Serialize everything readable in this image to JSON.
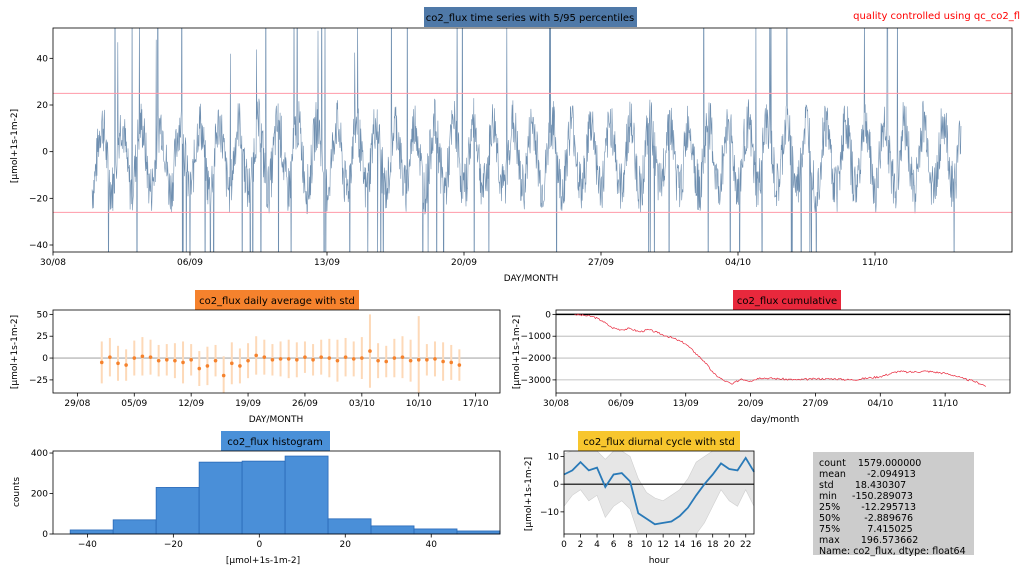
{
  "note": "quality controlled using qc_co2_fl",
  "colors": {
    "ts_title_bg": "#4f79a8",
    "ts_line": "#6f8fb0",
    "pct_line": "#ff9aa8",
    "daily_title_bg": "#f5822d",
    "daily_point": "#f5822d",
    "daily_bar": "#fdd9b8",
    "cum_title_bg": "#e8283c",
    "cum_line": "#e8283c",
    "hist_title_bg": "#4a90d8",
    "hist_fill": "#4a8fd8",
    "hist_edge": "#2a6ab8",
    "diurnal_title_bg": "#f7c62e",
    "diurnal_line": "#2a7ab8",
    "diurnal_band": "#e6e6e6",
    "stats_bg": "#cccccc"
  },
  "stats_lines": [
    "count    1579.000000",
    "mean       -2.094913",
    "std       18.430307",
    "min     -150.289073",
    "25%       -12.295713",
    "50%        -2.889676",
    "75%         7.415025",
    "max       196.573662",
    "Name: co2_flux, dtype: float64"
  ],
  "chart_data": [
    {
      "id": "timeseries",
      "type": "line",
      "title": "co2_flux time series with 5/95 percentiles",
      "xlabel": "DAY/MONTH",
      "ylabel": "[μmol+1s-1m-2]",
      "x_range_days": [
        0,
        49
      ],
      "x_ticks": [
        {
          "day": 0,
          "label": "30/08"
        },
        {
          "day": 7,
          "label": "06/09"
        },
        {
          "day": 14,
          "label": "13/09"
        },
        {
          "day": 21,
          "label": "20/09"
        },
        {
          "day": 28,
          "label": "27/09"
        },
        {
          "day": 35,
          "label": "04/10"
        },
        {
          "day": 42,
          "label": "11/10"
        }
      ],
      "ylim": [
        -43,
        53
      ],
      "y_ticks": [
        -40,
        -20,
        0,
        20,
        40
      ],
      "percentiles": {
        "p5": -26,
        "p95": 25
      },
      "series_start_day": 2.0,
      "series_end_day": 46.4,
      "series_step_day": 0.0208333,
      "series_values": []
    },
    {
      "id": "daily",
      "type": "errorbar",
      "title": "co2_flux daily average with std",
      "xlabel": "DAY/MONTH",
      "ylabel": "[μmol+1s-1m-2]",
      "x_range_days": [
        -3,
        52
      ],
      "x_ticks": [
        {
          "day": 0,
          "label": "29/08"
        },
        {
          "day": 7,
          "label": "05/09"
        },
        {
          "day": 14,
          "label": "12/09"
        },
        {
          "day": 21,
          "label": "19/09"
        },
        {
          "day": 28,
          "label": "26/09"
        },
        {
          "day": 35,
          "label": "03/10"
        },
        {
          "day": 42,
          "label": "10/10"
        },
        {
          "day": 49,
          "label": "17/10"
        }
      ],
      "ylim": [
        -40,
        55
      ],
      "y_ticks": [
        -25,
        0,
        25,
        50
      ],
      "days": [
        3,
        4,
        5,
        6,
        7,
        8,
        9,
        10,
        11,
        12,
        13,
        14,
        15,
        16,
        17,
        18,
        19,
        20,
        21,
        22,
        23,
        24,
        25,
        26,
        27,
        28,
        29,
        30,
        31,
        32,
        33,
        34,
        35,
        36,
        37,
        38,
        39,
        40,
        41,
        42,
        43,
        44,
        45,
        46,
        47
      ],
      "means": [
        -5,
        1,
        -6,
        -8,
        0,
        2,
        1,
        -3,
        -2,
        -3,
        -5,
        -2,
        -12,
        -9,
        -3,
        -20,
        -6,
        -9,
        -3,
        3,
        1,
        -2,
        -1,
        -1,
        -2,
        1,
        -2,
        1,
        0,
        -3,
        1,
        -1,
        0,
        8,
        -3,
        -4,
        0,
        1,
        -3,
        -2,
        -2,
        -1,
        -4,
        -5,
        -8
      ],
      "stds": [
        24,
        22,
        20,
        18,
        20,
        22,
        20,
        18,
        18,
        20,
        24,
        18,
        20,
        22,
        18,
        22,
        24,
        20,
        20,
        22,
        20,
        18,
        20,
        22,
        20,
        18,
        18,
        20,
        22,
        24,
        22,
        20,
        24,
        42,
        20,
        18,
        22,
        24,
        24,
        50,
        18,
        20,
        22,
        20,
        18
      ]
    },
    {
      "id": "cumulative",
      "type": "line",
      "title": "co2_flux cumulative",
      "xlabel": "day/month",
      "ylabel": "[μmol+1s-1m-2]",
      "x_range_days": [
        0,
        49
      ],
      "x_ticks": [
        {
          "day": 0,
          "label": "30/08"
        },
        {
          "day": 7,
          "label": "06/09"
        },
        {
          "day": 14,
          "label": "13/09"
        },
        {
          "day": 21,
          "label": "20/09"
        },
        {
          "day": 28,
          "label": "27/09"
        },
        {
          "day": 35,
          "label": "04/10"
        },
        {
          "day": 42,
          "label": "11/10"
        }
      ],
      "ylim": [
        -3600,
        200
      ],
      "y_ticks": [
        -3000,
        -2000,
        -1000,
        0
      ],
      "points": [
        [
          2,
          0
        ],
        [
          3,
          -50
        ],
        [
          4,
          -100
        ],
        [
          5,
          -300
        ],
        [
          6,
          -600
        ],
        [
          7,
          -700
        ],
        [
          8,
          -650
        ],
        [
          9,
          -800
        ],
        [
          10,
          -700
        ],
        [
          11,
          -850
        ],
        [
          12,
          -1000
        ],
        [
          13,
          -1150
        ],
        [
          14,
          -1350
        ],
        [
          15,
          -1750
        ],
        [
          16,
          -2150
        ],
        [
          17,
          -2700
        ],
        [
          18,
          -3000
        ],
        [
          19,
          -3200
        ],
        [
          20,
          -2950
        ],
        [
          21,
          -3050
        ],
        [
          22,
          -2900
        ],
        [
          24,
          -2950
        ],
        [
          26,
          -3000
        ],
        [
          28,
          -2950
        ],
        [
          30,
          -2950
        ],
        [
          32,
          -3000
        ],
        [
          34,
          -2900
        ],
        [
          35,
          -2850
        ],
        [
          37,
          -2600
        ],
        [
          38,
          -2650
        ],
        [
          40,
          -2600
        ],
        [
          42,
          -2700
        ],
        [
          43,
          -2800
        ],
        [
          44,
          -2950
        ],
        [
          45,
          -3050
        ],
        [
          46,
          -3200
        ],
        [
          46.4,
          -3300
        ]
      ]
    },
    {
      "id": "histogram",
      "type": "bar",
      "title": "co2_flux histogram",
      "xlabel": "[μmol+1s-1m-2]",
      "ylabel": "counts",
      "xlim": [
        -48,
        56
      ],
      "x_ticks": [
        -40,
        -20,
        0,
        20,
        40
      ],
      "ylim": [
        0,
        410
      ],
      "y_ticks": [
        0,
        200,
        400
      ],
      "bin_edges": [
        -44,
        -34,
        -24,
        -14,
        -4,
        6,
        16,
        26,
        36,
        46,
        56
      ],
      "counts": [
        20,
        70,
        230,
        355,
        360,
        385,
        75,
        40,
        25,
        15
      ]
    },
    {
      "id": "diurnal",
      "type": "line",
      "title": "co2_flux diurnal cycle with std",
      "xlabel": "hour",
      "ylabel": "[μmol+1s-1m-2]",
      "xlim": [
        0,
        23
      ],
      "x_ticks": [
        0,
        2,
        4,
        6,
        8,
        10,
        12,
        14,
        16,
        18,
        20,
        22
      ],
      "ylim": [
        -18,
        12
      ],
      "y_ticks": [
        -10,
        0,
        10
      ],
      "hours": [
        0,
        1,
        2,
        3,
        4,
        5,
        6,
        7,
        8,
        9,
        10,
        11,
        12,
        13,
        14,
        15,
        16,
        17,
        18,
        19,
        20,
        21,
        22,
        23
      ],
      "mean": [
        3.5,
        5,
        8,
        5,
        6,
        -1,
        3.5,
        4,
        1,
        -10.5,
        -12.5,
        -14.5,
        -14,
        -13.5,
        -11.5,
        -8.5,
        -4,
        0,
        3.5,
        7.5,
        5.5,
        5,
        9.5,
        4.5
      ],
      "upper": [
        11,
        12,
        12,
        12,
        12,
        9,
        12,
        12,
        10,
        2,
        -3,
        -5,
        -6,
        -4,
        -2,
        2,
        8,
        10,
        12,
        12,
        12,
        12,
        12,
        12
      ],
      "lower": [
        -8,
        -4,
        -2,
        -6,
        -4,
        -12,
        -8,
        -6,
        -9,
        -18,
        -18,
        -18,
        -18,
        -18,
        -18,
        -18,
        -18,
        -14,
        -8,
        -2,
        -6,
        -8,
        -2,
        -8
      ]
    }
  ]
}
